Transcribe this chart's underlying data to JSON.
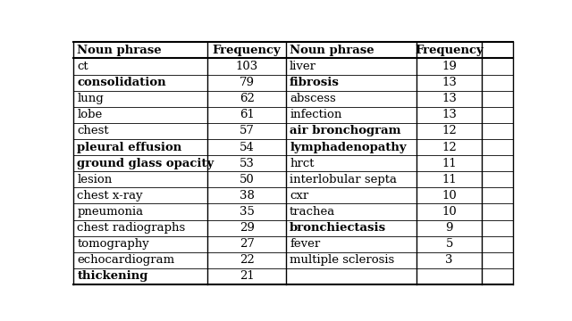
{
  "left_data": [
    {
      "noun_phrase": "ct",
      "frequency": "103",
      "bold": false
    },
    {
      "noun_phrase": "consolidation",
      "frequency": "79",
      "bold": true
    },
    {
      "noun_phrase": "lung",
      "frequency": "62",
      "bold": false
    },
    {
      "noun_phrase": "lobe",
      "frequency": "61",
      "bold": false
    },
    {
      "noun_phrase": "chest",
      "frequency": "57",
      "bold": false
    },
    {
      "noun_phrase": "pleural effusion",
      "frequency": "54",
      "bold": true
    },
    {
      "noun_phrase": "ground glass opacity",
      "frequency": "53",
      "bold": true
    },
    {
      "noun_phrase": "lesion",
      "frequency": "50",
      "bold": false
    },
    {
      "noun_phrase": "chest x-ray",
      "frequency": "38",
      "bold": false
    },
    {
      "noun_phrase": "pneumonia",
      "frequency": "35",
      "bold": false
    },
    {
      "noun_phrase": "chest radiographs",
      "frequency": "29",
      "bold": false
    },
    {
      "noun_phrase": "tomography",
      "frequency": "27",
      "bold": false
    },
    {
      "noun_phrase": "echocardiogram",
      "frequency": "22",
      "bold": false
    },
    {
      "noun_phrase": "thickening",
      "frequency": "21",
      "bold": true
    }
  ],
  "right_data": [
    {
      "noun_phrase": "liver",
      "frequency": "19",
      "bold": false
    },
    {
      "noun_phrase": "fibrosis",
      "frequency": "13",
      "bold": true
    },
    {
      "noun_phrase": "abscess",
      "frequency": "13",
      "bold": false
    },
    {
      "noun_phrase": "infection",
      "frequency": "13",
      "bold": false
    },
    {
      "noun_phrase": "air bronchogram",
      "frequency": "12",
      "bold": true
    },
    {
      "noun_phrase": "lymphadenopathy",
      "frequency": "12",
      "bold": true
    },
    {
      "noun_phrase": "hrct",
      "frequency": "11",
      "bold": false
    },
    {
      "noun_phrase": "interlobular septa",
      "frequency": "11",
      "bold": false
    },
    {
      "noun_phrase": "cxr",
      "frequency": "10",
      "bold": false
    },
    {
      "noun_phrase": "trachea",
      "frequency": "10",
      "bold": false
    },
    {
      "noun_phrase": "bronchiectasis",
      "frequency": "9",
      "bold": true
    },
    {
      "noun_phrase": "fever",
      "frequency": "5",
      "bold": false
    },
    {
      "noun_phrase": "multiple sclerosis",
      "frequency": "3",
      "bold": false
    },
    {
      "noun_phrase": "",
      "frequency": "",
      "bold": false
    }
  ],
  "header": [
    "Noun phrase",
    "Frequency",
    "Noun phrase",
    "Frequency"
  ],
  "background_color": "#ffffff",
  "font_size": 9.5,
  "header_font_size": 9.5
}
